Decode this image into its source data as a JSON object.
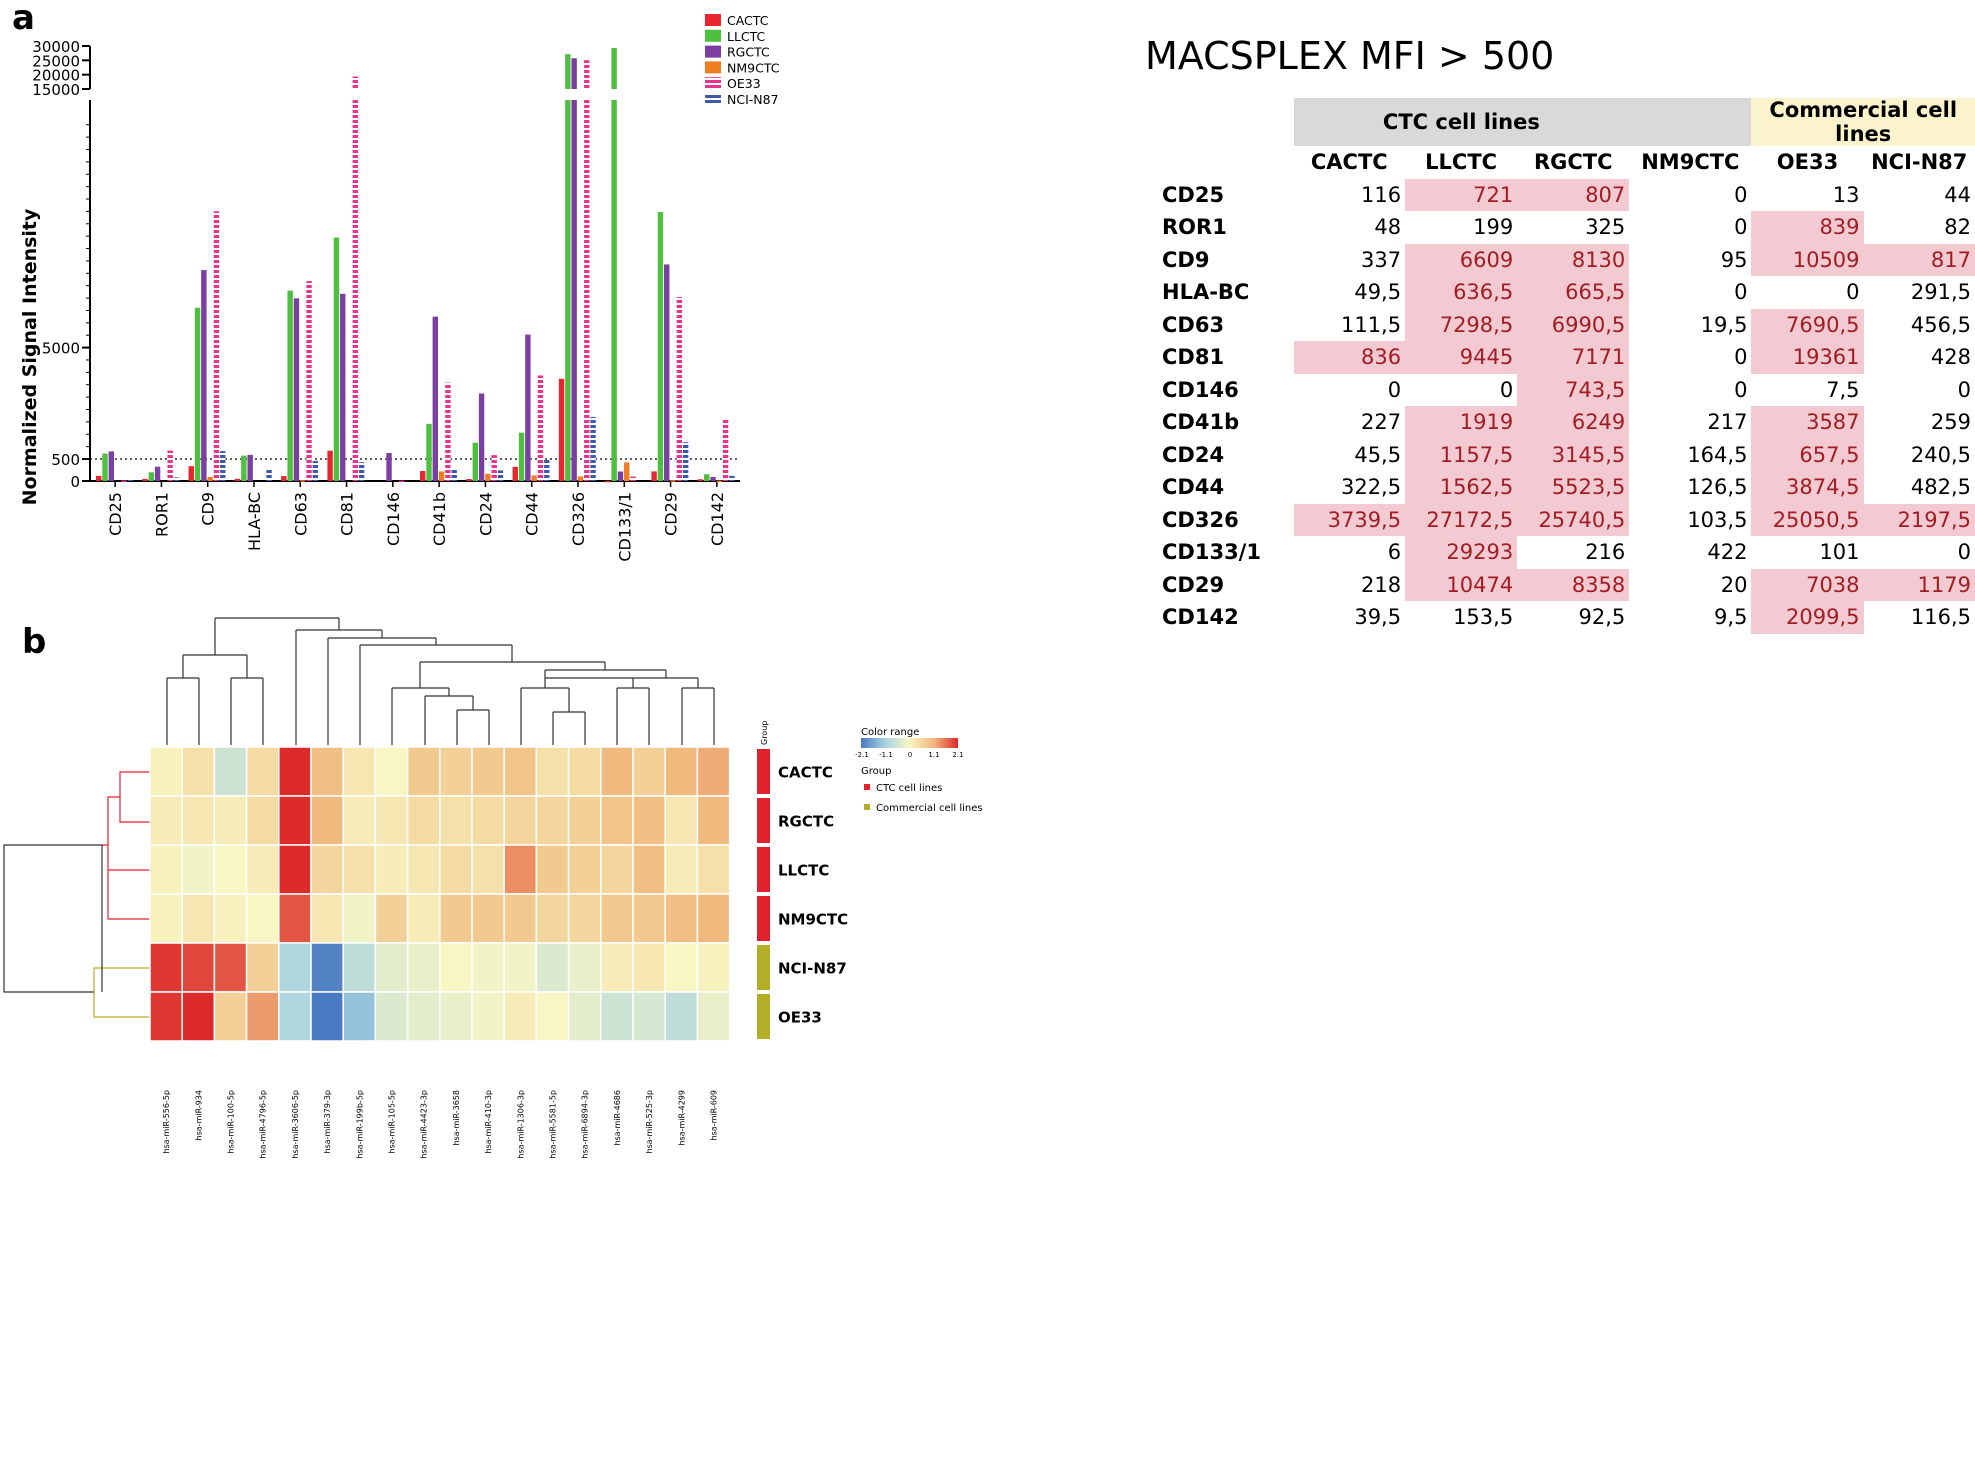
{
  "panel_labels": {
    "a": "a",
    "b": "b"
  },
  "chart_data": [
    {
      "type": "bar",
      "ylabel": "Normalized Signal Intensity",
      "xlabel": "",
      "axis_break": true,
      "yticks_lower": [
        0,
        500,
        5000
      ],
      "yticks_upper": [
        15000,
        20000,
        25000,
        30000
      ],
      "threshold_line": 500,
      "legend_position": "top-right",
      "categories": [
        "CD25",
        "ROR1",
        "CD9",
        "HLA-BC",
        "CD63",
        "CD81",
        "CD146",
        "CD41b",
        "CD24",
        "CD44",
        "CD326",
        "CD133/1",
        "CD29",
        "CD142"
      ],
      "series": [
        {
          "name": "CACTC",
          "color": "#e8262d",
          "pattern": "solid",
          "values": [
            116,
            48,
            337,
            49.5,
            111.5,
            836,
            0,
            227,
            45.5,
            322.5,
            3739.5,
            6,
            218,
            39.5
          ]
        },
        {
          "name": "LLCTC",
          "color": "#4fbf3f",
          "pattern": "solid",
          "values": [
            721,
            199,
            6609,
            636.5,
            7298.5,
            9445,
            0,
            1919,
            1157.5,
            1562.5,
            27172.5,
            29293,
            10474,
            153.5
          ]
        },
        {
          "name": "RGCTC",
          "color": "#7a3fa0",
          "pattern": "solid",
          "values": [
            807,
            325,
            8130,
            665.5,
            6990.5,
            7171,
            743.5,
            6249,
            3145.5,
            5523.5,
            25740.5,
            216,
            8358,
            92.5
          ]
        },
        {
          "name": "NM9CTC",
          "color": "#ef7d22",
          "pattern": "solid",
          "values": [
            0,
            0,
            95,
            0,
            19.5,
            0,
            0,
            217,
            164.5,
            126.5,
            103.5,
            422,
            20,
            9.5
          ]
        },
        {
          "name": "OE33",
          "color": "#e8338c",
          "pattern": "striped",
          "values": [
            13,
            839,
            10509,
            0,
            7690.5,
            19361,
            7.5,
            3587,
            657.5,
            3874.5,
            25050.5,
            101,
            7038,
            2099.5
          ]
        },
        {
          "name": "NCI-N87",
          "color": "#3d5aa8",
          "pattern": "striped",
          "values": [
            44,
            82,
            817,
            291.5,
            456.5,
            428,
            0,
            259,
            240.5,
            482.5,
            2197.5,
            0,
            1179,
            116.5
          ]
        }
      ]
    },
    {
      "type": "table",
      "title": "MACSPLEX MFI > 500",
      "groups": [
        {
          "label": "CTC cell lines",
          "columns": [
            "CACTC",
            "LLCTC",
            "RGCTC",
            "NM9CTC"
          ]
        },
        {
          "label": "Commercial cell lines",
          "columns": [
            "OE33",
            "NCI-N87"
          ]
        }
      ],
      "columns": [
        "CACTC",
        "LLCTC",
        "RGCTC",
        "NM9CTC",
        "OE33",
        "NCI-N87"
      ],
      "rows": [
        {
          "label": "CD25",
          "cells": [
            "116",
            "721",
            "807",
            "0",
            "13",
            "44"
          ],
          "highlight": [
            0,
            1,
            1,
            0,
            0,
            0
          ]
        },
        {
          "label": "ROR1",
          "cells": [
            "48",
            "199",
            "325",
            "0",
            "839",
            "82"
          ],
          "highlight": [
            0,
            0,
            0,
            0,
            1,
            0
          ]
        },
        {
          "label": "CD9",
          "cells": [
            "337",
            "6609",
            "8130",
            "95",
            "10509",
            "817"
          ],
          "highlight": [
            0,
            1,
            1,
            0,
            1,
            1
          ]
        },
        {
          "label": "HLA-BC",
          "cells": [
            "49,5",
            "636,5",
            "665,5",
            "0",
            "0",
            "291,5"
          ],
          "highlight": [
            0,
            1,
            1,
            0,
            0,
            0
          ]
        },
        {
          "label": "CD63",
          "cells": [
            "111,5",
            "7298,5",
            "6990,5",
            "19,5",
            "7690,5",
            "456,5"
          ],
          "highlight": [
            0,
            1,
            1,
            0,
            1,
            0
          ]
        },
        {
          "label": "CD81",
          "cells": [
            "836",
            "9445",
            "7171",
            "0",
            "19361",
            "428"
          ],
          "highlight": [
            1,
            1,
            1,
            0,
            1,
            0
          ]
        },
        {
          "label": "CD146",
          "cells": [
            "0",
            "0",
            "743,5",
            "0",
            "7,5",
            "0"
          ],
          "highlight": [
            0,
            0,
            1,
            0,
            0,
            0
          ]
        },
        {
          "label": "CD41b",
          "cells": [
            "227",
            "1919",
            "6249",
            "217",
            "3587",
            "259"
          ],
          "highlight": [
            0,
            1,
            1,
            0,
            1,
            0
          ]
        },
        {
          "label": "CD24",
          "cells": [
            "45,5",
            "1157,5",
            "3145,5",
            "164,5",
            "657,5",
            "240,5"
          ],
          "highlight": [
            0,
            1,
            1,
            0,
            1,
            0
          ]
        },
        {
          "label": "CD44",
          "cells": [
            "322,5",
            "1562,5",
            "5523,5",
            "126,5",
            "3874,5",
            "482,5"
          ],
          "highlight": [
            0,
            1,
            1,
            0,
            1,
            0
          ]
        },
        {
          "label": "CD326",
          "cells": [
            "3739,5",
            "27172,5",
            "25740,5",
            "103,5",
            "25050,5",
            "2197,5"
          ],
          "highlight": [
            1,
            1,
            1,
            0,
            1,
            1
          ]
        },
        {
          "label": "CD133/1",
          "cells": [
            "6",
            "29293",
            "216",
            "422",
            "101",
            "0"
          ],
          "highlight": [
            0,
            1,
            0,
            0,
            0,
            0
          ]
        },
        {
          "label": "CD29",
          "cells": [
            "218",
            "10474",
            "8358",
            "20",
            "7038",
            "1179"
          ],
          "highlight": [
            0,
            1,
            1,
            0,
            1,
            1
          ]
        },
        {
          "label": "CD142",
          "cells": [
            "39,5",
            "153,5",
            "92,5",
            "9,5",
            "2099,5",
            "116,5"
          ],
          "highlight": [
            0,
            0,
            0,
            0,
            1,
            0
          ]
        }
      ]
    },
    {
      "type": "heatmap",
      "columns": [
        "hsa-miR-556-5p",
        "hsa-miR-934",
        "hsa-miR-100-5p",
        "hsa-miR-4796-5p",
        "hsa-miR-3606-5p",
        "hsa-miR-379-3p",
        "hsa-miR-199b-5p",
        "hsa-miR-105-5p",
        "hsa-miR-4423-3p",
        "hsa-miR-3658",
        "hsa-miR-410-3p",
        "hsa-miR-1306-3p",
        "hsa-miR-5581-5p",
        "hsa-miR-6894-3p",
        "hsa-miR-4686",
        "hsa-miR-525-3p",
        "hsa-miR-4299",
        "hsa-miR-609"
      ],
      "rows": [
        {
          "label": "CACTC",
          "group": "CTC cell lines",
          "values": [
            0.1,
            0.4,
            -0.6,
            0.5,
            2.1,
            1.0,
            0.3,
            0.0,
            0.8,
            0.7,
            0.8,
            0.9,
            0.4,
            0.5,
            1.1,
            0.7,
            1.1,
            1.2
          ]
        },
        {
          "label": "RGCTC",
          "group": "CTC cell lines",
          "values": [
            0.2,
            0.3,
            0.2,
            0.5,
            2.1,
            1.1,
            0.2,
            0.3,
            0.5,
            0.4,
            0.5,
            0.6,
            0.6,
            0.7,
            0.9,
            1.0,
            0.3,
            1.1
          ]
        },
        {
          "label": "LLCTC",
          "group": "CTC cell lines",
          "values": [
            0.1,
            -0.1,
            0.0,
            0.2,
            2.1,
            0.6,
            0.4,
            0.2,
            0.3,
            0.5,
            0.4,
            1.4,
            0.8,
            0.7,
            0.6,
            1.0,
            0.2,
            0.4
          ]
        },
        {
          "label": "NM9CTC",
          "group": "CTC cell lines",
          "values": [
            0.1,
            0.3,
            0.1,
            0.0,
            1.8,
            0.3,
            -0.1,
            0.7,
            0.2,
            0.8,
            0.8,
            0.8,
            0.6,
            0.6,
            0.8,
            0.8,
            1.0,
            1.1
          ]
        },
        {
          "label": "NCI-N87",
          "group": "Commercial cell lines",
          "values": [
            2.0,
            1.9,
            1.8,
            0.7,
            -1.0,
            -2.0,
            -0.8,
            -0.3,
            -0.2,
            0.0,
            -0.1,
            -0.1,
            -0.4,
            -0.2,
            0.2,
            0.3,
            0.0,
            0.1
          ]
        },
        {
          "label": "OE33",
          "group": "Commercial cell lines",
          "values": [
            2.0,
            2.1,
            0.7,
            1.3,
            -1.0,
            -2.1,
            -1.3,
            -0.4,
            -0.3,
            -0.2,
            -0.1,
            0.2,
            0.0,
            -0.3,
            -0.6,
            -0.5,
            -0.8,
            -0.2
          ]
        }
      ],
      "color_range": {
        "label": "Color range",
        "min": -2.1,
        "max": 2.1,
        "ticks": [
          "-2.1",
          "-1.1",
          "0",
          "1.1",
          "2.1"
        ]
      },
      "group_legend": {
        "title": "Group",
        "header": "Group",
        "items": [
          {
            "label": "CTC cell lines",
            "color": "#e0222e"
          },
          {
            "label": "Commercial cell lines",
            "color": "#b3ae27"
          }
        ]
      }
    }
  ]
}
